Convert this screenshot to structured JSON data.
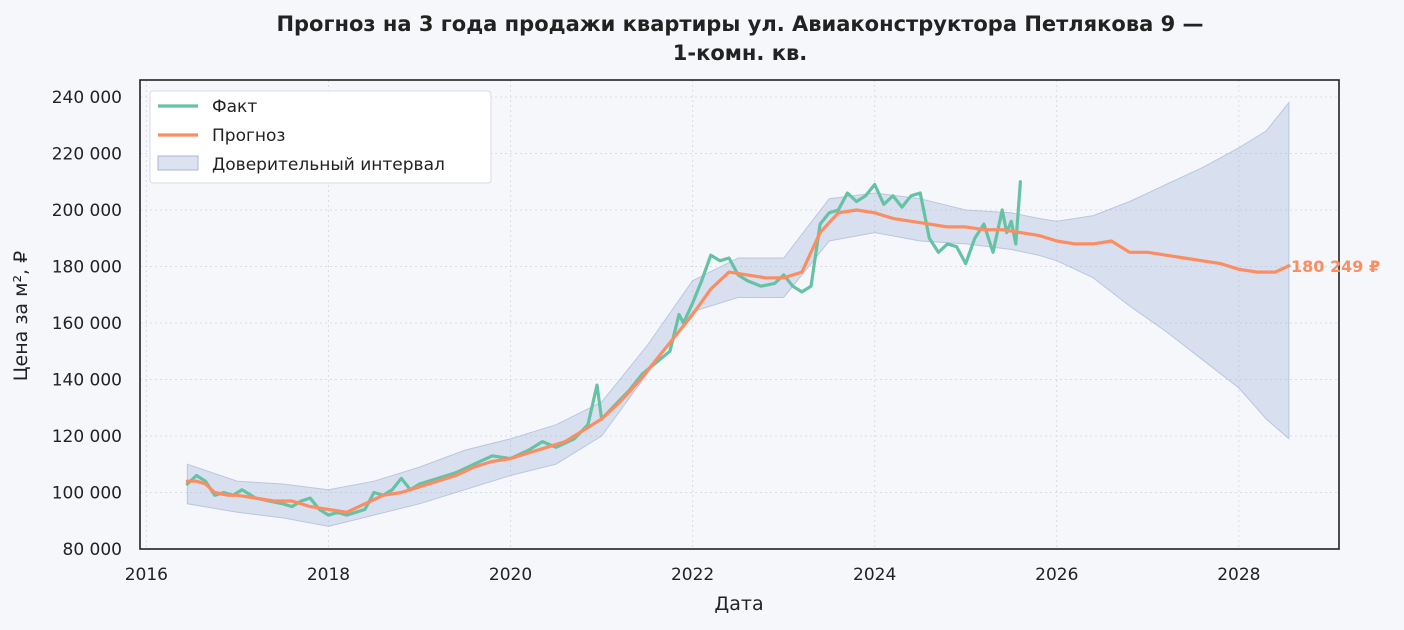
{
  "chart_data": {
    "type": "line",
    "title_line1": "Прогноз на 3 года продажи квартиры  ул. Авиаконструктора Петлякова 9 —",
    "title_line2": "1-комн. кв.",
    "xlabel": "Дата",
    "ylabel": "Цена за м², ₽",
    "xlim": [
      2015.93,
      2029.1
    ],
    "ylim": [
      80000,
      246000
    ],
    "x_ticks": [
      2016,
      2018,
      2020,
      2022,
      2024,
      2026,
      2028
    ],
    "x_tick_labels": [
      "2016",
      "2018",
      "2020",
      "2022",
      "2024",
      "2026",
      "2028"
    ],
    "y_ticks": [
      80000,
      100000,
      120000,
      140000,
      160000,
      180000,
      200000,
      220000,
      240000
    ],
    "y_tick_labels": [
      "80 000",
      "100 000",
      "120 000",
      "140 000",
      "160 000",
      "180 000",
      "200 000",
      "220 000",
      "240 000"
    ],
    "grid": true,
    "legend_position": "top-left",
    "legend": {
      "fact": "Факт",
      "forecast": "Прогноз",
      "interval": "Доверительный интервал"
    },
    "colors": {
      "fact": "#66c2a5",
      "forecast": "#fc8d62",
      "interval": "#a9b7d9"
    },
    "end_label": "180 249 ₽",
    "end_value": 180249,
    "series": [
      {
        "name": "Факт",
        "x": [
          2016.45,
          2016.55,
          2016.65,
          2016.75,
          2016.85,
          2016.95,
          2017.05,
          2017.2,
          2017.35,
          2017.5,
          2017.6,
          2017.7,
          2017.8,
          2017.9,
          2018.0,
          2018.1,
          2018.2,
          2018.3,
          2018.4,
          2018.5,
          2018.6,
          2018.7,
          2018.8,
          2018.9,
          2019.0,
          2019.2,
          2019.4,
          2019.6,
          2019.8,
          2020.0,
          2020.2,
          2020.35,
          2020.5,
          2020.7,
          2020.85,
          2020.95,
          2021.0,
          2021.15,
          2021.3,
          2021.45,
          2021.6,
          2021.75,
          2021.85,
          2021.9,
          2022.0,
          2022.1,
          2022.2,
          2022.3,
          2022.4,
          2022.5,
          2022.6,
          2022.75,
          2022.9,
          2023.0,
          2023.1,
          2023.2,
          2023.3,
          2023.4,
          2023.5,
          2023.6,
          2023.7,
          2023.8,
          2023.9,
          2024.0,
          2024.1,
          2024.2,
          2024.3,
          2024.4,
          2024.5,
          2024.55,
          2024.6,
          2024.7,
          2024.8,
          2024.9,
          2025.0,
          2025.1,
          2025.2,
          2025.3,
          2025.4,
          2025.45,
          2025.5,
          2025.55,
          2025.6
        ],
        "values": [
          103000,
          106000,
          104000,
          99000,
          100000,
          99000,
          101000,
          98000,
          97000,
          96000,
          95000,
          97000,
          98000,
          94000,
          92000,
          93000,
          92000,
          93000,
          94000,
          100000,
          99000,
          101000,
          105000,
          101000,
          103000,
          105000,
          107000,
          110000,
          113000,
          112000,
          115000,
          118000,
          116000,
          119000,
          124000,
          138000,
          126000,
          131000,
          136000,
          142000,
          146000,
          150000,
          163000,
          160000,
          167000,
          175000,
          184000,
          182000,
          183000,
          177000,
          175000,
          173000,
          174000,
          177000,
          173000,
          171000,
          173000,
          195000,
          199000,
          200000,
          206000,
          203000,
          205000,
          209000,
          202000,
          205000,
          201000,
          205000,
          206000,
          198000,
          190000,
          185000,
          188000,
          187000,
          181000,
          190000,
          195000,
          185000,
          200000,
          192000,
          196000,
          188000,
          210000
        ]
      },
      {
        "name": "Прогноз",
        "x": [
          2016.45,
          2016.55,
          2016.65,
          2016.75,
          2016.9,
          2017.0,
          2017.2,
          2017.4,
          2017.6,
          2017.8,
          2018.0,
          2018.2,
          2018.4,
          2018.6,
          2018.8,
          2019.0,
          2019.2,
          2019.4,
          2019.6,
          2019.8,
          2020.0,
          2020.2,
          2020.4,
          2020.6,
          2020.8,
          2021.0,
          2021.2,
          2021.4,
          2021.6,
          2021.8,
          2022.0,
          2022.2,
          2022.4,
          2022.6,
          2022.8,
          2023.0,
          2023.2,
          2023.4,
          2023.6,
          2023.8,
          2024.0,
          2024.2,
          2024.4,
          2024.6,
          2024.8,
          2025.0,
          2025.2,
          2025.4,
          2025.6,
          2025.8,
          2026.0,
          2026.2,
          2026.4,
          2026.6,
          2026.8,
          2027.0,
          2027.2,
          2027.4,
          2027.6,
          2027.8,
          2028.0,
          2028.2,
          2028.4,
          2028.55
        ],
        "values": [
          104000,
          104000,
          103000,
          100000,
          99000,
          99000,
          98000,
          97000,
          97000,
          95000,
          94000,
          93000,
          96000,
          99000,
          100000,
          102000,
          104000,
          106000,
          109000,
          111000,
          112000,
          114000,
          116000,
          118000,
          122000,
          126000,
          132000,
          139000,
          147000,
          155000,
          163000,
          172000,
          178000,
          177000,
          176000,
          176000,
          178000,
          192000,
          199000,
          200000,
          199000,
          197000,
          196000,
          195000,
          194000,
          194000,
          193000,
          193000,
          192000,
          191000,
          189000,
          188000,
          188000,
          189000,
          185000,
          185000,
          184000,
          183000,
          182000,
          181000,
          179000,
          178000,
          178000,
          180249
        ]
      }
    ],
    "interval": {
      "x": [
        2016.45,
        2017.0,
        2017.5,
        2018.0,
        2018.5,
        2019.0,
        2019.5,
        2020.0,
        2020.5,
        2021.0,
        2021.5,
        2022.0,
        2022.5,
        2023.0,
        2023.5,
        2024.0,
        2024.5,
        2025.0,
        2025.5,
        2025.8,
        2026.0,
        2026.4,
        2026.8,
        2027.2,
        2027.6,
        2028.0,
        2028.3,
        2028.55
      ],
      "upper": [
        110000,
        104000,
        103000,
        101000,
        104000,
        109000,
        115000,
        119000,
        124000,
        132000,
        152000,
        175000,
        183000,
        183000,
        204000,
        206000,
        204000,
        200000,
        199000,
        197000,
        196000,
        198000,
        203000,
        209000,
        215000,
        222000,
        228000,
        238000
      ],
      "lower": [
        96000,
        93000,
        91000,
        88000,
        92000,
        96000,
        101000,
        106000,
        110000,
        120000,
        142000,
        164000,
        169000,
        169000,
        189000,
        192000,
        189000,
        188000,
        186000,
        184000,
        182000,
        176000,
        166000,
        157000,
        147000,
        137000,
        126000,
        119000
      ]
    }
  }
}
